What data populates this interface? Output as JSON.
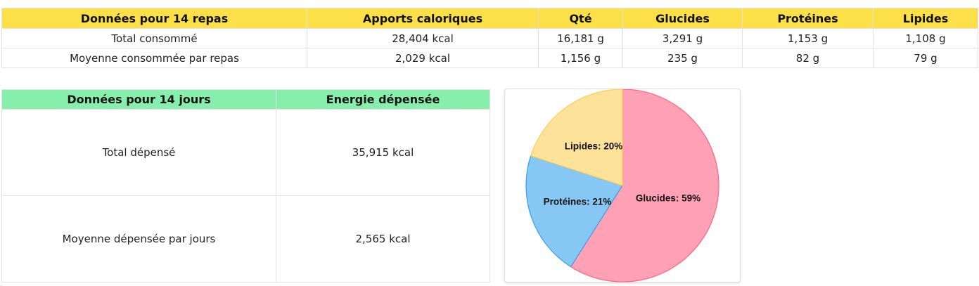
{
  "meals": {
    "headers": [
      "Données pour 14 repas",
      "Apports caloriques",
      "Qté",
      "Glucides",
      "Protéines",
      "Lipides"
    ],
    "rows": [
      [
        "Total consommé",
        "28,404 kcal",
        "16,181 g",
        "3,291 g",
        "1,153 g",
        "1,108 g"
      ],
      [
        "Moyenne consommée par repas",
        "2,029 kcal",
        "1,156 g",
        "235 g",
        "82 g",
        "79 g"
      ]
    ],
    "header_color": "#fde047"
  },
  "days": {
    "headers": [
      "Données pour 14 jours",
      "Energie dépensée"
    ],
    "rows": [
      [
        "Total dépensé",
        "35,915 kcal"
      ],
      [
        "Moyenne dépensée par jours",
        "2,565 kcal"
      ]
    ],
    "header_color": "#86efac"
  },
  "chart_data": {
    "type": "pie",
    "slices": [
      {
        "name": "Glucides",
        "value": 59,
        "label": "Glucides: 59%",
        "color": "#ffa1b5",
        "border": "#ff6384"
      },
      {
        "name": "Protéines",
        "value": 21,
        "label": "Protéines: 21%",
        "color": "#86c7f3",
        "border": "#36a2eb"
      },
      {
        "name": "Lipides",
        "value": 20,
        "label": "Lipides: 20%",
        "color": "#ffe29a",
        "border": "#ffce56"
      }
    ]
  }
}
